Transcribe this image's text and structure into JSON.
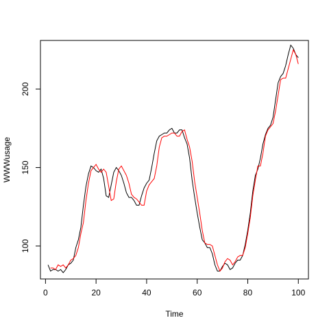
{
  "chart_data": {
    "type": "line",
    "title": "",
    "xlabel": "Time",
    "ylabel": "WWWusage",
    "xlim": [
      -2,
      104
    ],
    "ylim": [
      79,
      231
    ],
    "xticks": [
      0,
      20,
      40,
      60,
      80,
      100
    ],
    "yticks": [
      100,
      150,
      200
    ],
    "grid": false,
    "legend": "none",
    "series": [
      {
        "color": "#000000",
        "x": [
          1,
          2,
          3,
          4,
          5,
          6,
          7,
          8,
          9,
          10,
          11,
          12,
          13,
          14,
          15,
          16,
          17,
          18,
          19,
          20,
          21,
          22,
          23,
          24,
          25,
          26,
          27,
          28,
          29,
          30,
          31,
          32,
          33,
          34,
          35,
          36,
          37,
          38,
          39,
          40,
          41,
          42,
          43,
          44,
          45,
          46,
          47,
          48,
          49,
          50,
          51,
          52,
          53,
          54,
          55,
          56,
          57,
          58,
          59,
          60,
          61,
          62,
          63,
          64,
          65,
          66,
          67,
          68,
          69,
          70,
          71,
          72,
          73,
          74,
          75,
          76,
          77,
          78,
          79,
          80,
          81,
          82,
          83,
          84,
          85,
          86,
          87,
          88,
          89,
          90,
          91,
          92,
          93,
          94,
          95,
          96,
          97,
          98,
          99,
          100
        ],
        "values": [
          88,
          84,
          85,
          85,
          84,
          85,
          83,
          85,
          88,
          89,
          91,
          99,
          104,
          112,
          126,
          138,
          146,
          151,
          150,
          148,
          147,
          149,
          143,
          132,
          131,
          139,
          147,
          150,
          148,
          145,
          140,
          134,
          131,
          131,
          129,
          126,
          126,
          132,
          137,
          140,
          142,
          150,
          159,
          167,
          170,
          171,
          172,
          172,
          174,
          175,
          172,
          172,
          174,
          174,
          169,
          165,
          156,
          142,
          131,
          121,
          112,
          104,
          102,
          99,
          99,
          95,
          88,
          84,
          84,
          87,
          89,
          88,
          85,
          86,
          89,
          91,
          91,
          94,
          101,
          110,
          121,
          135,
          145,
          149,
          156,
          165,
          171,
          175,
          177,
          182,
          193,
          204,
          208,
          210,
          215,
          222,
          228,
          226,
          222,
          220
        ]
      },
      {
        "color": "#ff0000",
        "x": [
          2,
          3,
          4,
          5,
          6,
          7,
          8,
          9,
          10,
          11,
          12,
          13,
          14,
          15,
          16,
          17,
          18,
          19,
          20,
          21,
          22,
          23,
          24,
          25,
          26,
          27,
          28,
          29,
          30,
          31,
          32,
          33,
          34,
          35,
          36,
          37,
          38,
          39,
          40,
          41,
          42,
          43,
          44,
          45,
          46,
          47,
          48,
          49,
          50,
          51,
          52,
          53,
          54,
          55,
          56,
          57,
          58,
          59,
          60,
          61,
          62,
          63,
          64,
          65,
          66,
          67,
          68,
          69,
          70,
          71,
          72,
          73,
          74,
          75,
          76,
          77,
          78,
          79,
          80,
          81,
          82,
          83,
          84,
          85,
          86,
          87,
          88,
          89,
          90,
          91,
          92,
          93,
          94,
          95,
          96,
          97,
          98,
          99,
          100
        ],
        "values": [
          86,
          86,
          85,
          88,
          87,
          88,
          86,
          88,
          91,
          92,
          94,
          99,
          108,
          115,
          129,
          140,
          148,
          150,
          152,
          149,
          147,
          149,
          147,
          138,
          129,
          130,
          141,
          149,
          151,
          148,
          145,
          140,
          133,
          131,
          130,
          128,
          126,
          126,
          135,
          139,
          141,
          143,
          151,
          163,
          169,
          170,
          170,
          171,
          172,
          172,
          170,
          170,
          173,
          174,
          168,
          163,
          154,
          141,
          131,
          121,
          110,
          102,
          101,
          101,
          100,
          94,
          88,
          84,
          86,
          90,
          92,
          91,
          88,
          90,
          93,
          94,
          94,
          99,
          108,
          118,
          132,
          142,
          151,
          151,
          159,
          170,
          174,
          176,
          178,
          186,
          196,
          206,
          207,
          207,
          213,
          219,
          225,
          222,
          216
        ]
      }
    ]
  }
}
